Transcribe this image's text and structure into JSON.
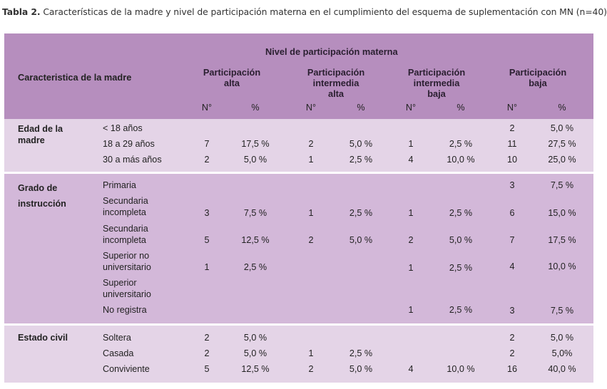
{
  "caption": {
    "label": "Tabla 2.",
    "text": " Características de la madre y nivel de participación materna en el cumplimiento del esquema de suplementación con MN (n=40)"
  },
  "header": {
    "group_title": "Nivel de participación materna",
    "row_header": "Caracteristica de la madre",
    "columns": [
      {
        "line1": "Participación",
        "line2": "alta",
        "line3": ""
      },
      {
        "line1": "Participación",
        "line2": "intermedia",
        "line3": "alta"
      },
      {
        "line1": "Participación",
        "line2": "intermedia",
        "line3": "baja"
      },
      {
        "line1": "Participación",
        "line2": "baja",
        "line3": ""
      }
    ],
    "n_label": "N°",
    "pct_label": "%"
  },
  "groups": [
    {
      "label_line1": "Edad de la",
      "label_line2": "madre",
      "rows": [
        {
          "category": "< 18 años",
          "values": [
            "",
            "",
            "",
            "",
            "",
            "",
            "2",
            "5,0 %"
          ]
        },
        {
          "category": "18 a 29 años",
          "values": [
            "7",
            "17,5 %",
            "2",
            "5,0 %",
            "1",
            "2,5 %",
            "11",
            "27,5 %"
          ]
        },
        {
          "category": "30 a más años",
          "values": [
            "2",
            "5,0 %",
            "1",
            "2,5 %",
            "4",
            "10,0 %",
            "10",
            "25,0 %"
          ]
        }
      ]
    },
    {
      "label_line1": "Grado de",
      "label_line2": "instrucción",
      "rows": [
        {
          "category": "Primaria",
          "category2": "",
          "values": [
            "",
            "",
            "",
            "",
            "",
            "",
            "3",
            "7,5 %"
          ]
        },
        {
          "category": "Secundaria",
          "category2": "incompleta",
          "values": [
            "3",
            "7,5 %",
            "1",
            "2,5 %",
            "1",
            "2,5 %",
            "6",
            "15,0 %"
          ]
        },
        {
          "category": "Secundaria",
          "category2": "incompleta",
          "values": [
            "5",
            "12,5 %",
            "2",
            "5,0 %",
            "2",
            "5,0 %",
            "7",
            "17,5 %"
          ]
        },
        {
          "category": "Superior no",
          "category2": "universitario",
          "values": [
            "1",
            "2,5 %",
            "",
            "",
            "1",
            "2,5 %",
            "4",
            "10,0 %"
          ]
        },
        {
          "category": "Superior",
          "category2": "universitario",
          "values": [
            "",
            "",
            "",
            "",
            "",
            "",
            "",
            ""
          ]
        },
        {
          "category": "No registra",
          "category2": "",
          "values": [
            "",
            "",
            "",
            "",
            "1",
            "2,5 %",
            "3",
            "7,5 %"
          ]
        }
      ]
    },
    {
      "label_line1": "Estado civil",
      "label_line2": "",
      "rows": [
        {
          "category": "Soltera",
          "values": [
            "2",
            "5,0 %",
            "",
            "",
            "",
            "",
            "2",
            "5,0 %"
          ]
        },
        {
          "category": "Casada",
          "values": [
            "2",
            "5,0 %",
            "1",
            "2,5 %",
            "",
            "",
            "2",
            "5,0%"
          ]
        },
        {
          "category": "Conviviente",
          "values": [
            "5",
            "12,5 %",
            "2",
            "5,0 %",
            "4",
            "10,0 %",
            "16",
            "40,0 %"
          ]
        }
      ]
    }
  ],
  "colors": {
    "header_bg": "#b68ebe",
    "light_band": "#e4d4e7",
    "mid_band": "#d3b8d9",
    "text": "#222222"
  }
}
